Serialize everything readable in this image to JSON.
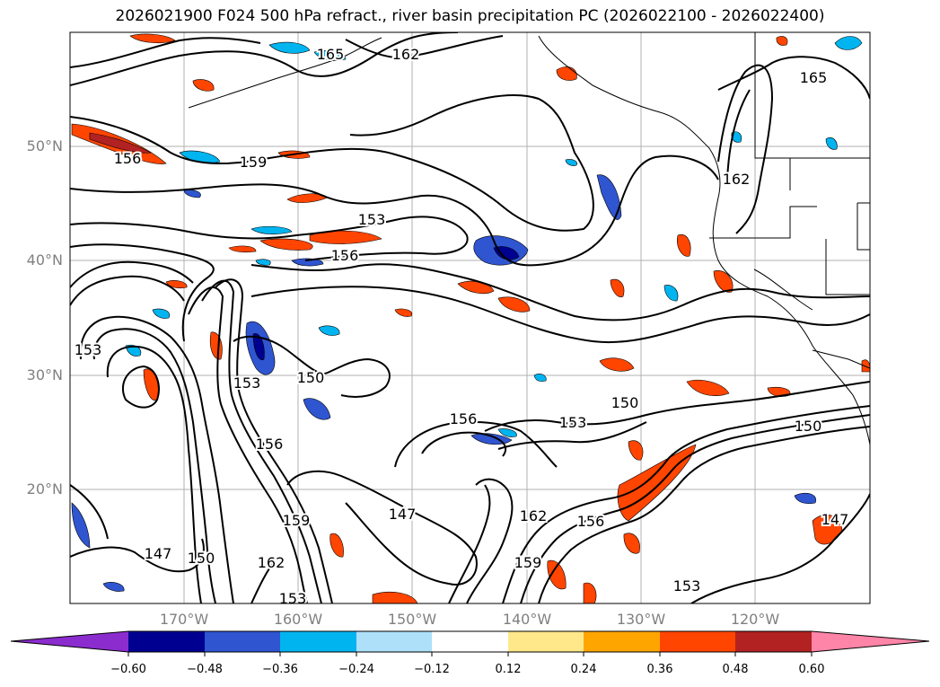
{
  "title": "2026021900 F024 500 hPa refract., river basin precipitation PC (2026022100 - 2026022400)",
  "map": {
    "lat_labels": [
      "50°N",
      "40°N",
      "30°N",
      "20°N"
    ],
    "lon_labels": [
      "170°W",
      "160°W",
      "150°W",
      "140°W",
      "130°W",
      "120°W"
    ],
    "contour_labels": [
      "165",
      "162",
      "165",
      "156",
      "159",
      "153",
      "156",
      "162",
      "153",
      "150",
      "153",
      "156",
      "156",
      "153",
      "150",
      "150",
      "159",
      "147",
      "162",
      "156",
      "159",
      "162",
      "147",
      "150",
      "147",
      "153",
      "153"
    ],
    "colors": {
      "neg_extreme": "#8b2ccf",
      "neg_strong": "#000090",
      "neg_mid": "#2f55d0",
      "neg_low": "#00b4f0",
      "neg_weak": "#aee0fa",
      "neutral": "#ffffff",
      "pos_weak": "#ffe88a",
      "pos_low": "#ffa500",
      "pos_mid": "#ff4500",
      "pos_strong": "#b22222",
      "pos_extreme": "#ff85a8"
    }
  },
  "colorbar": {
    "ticks": [
      "−0.60",
      "−0.48",
      "−0.36",
      "−0.24",
      "−0.12",
      "0.12",
      "0.24",
      "0.36",
      "0.48",
      "0.60"
    ]
  }
}
